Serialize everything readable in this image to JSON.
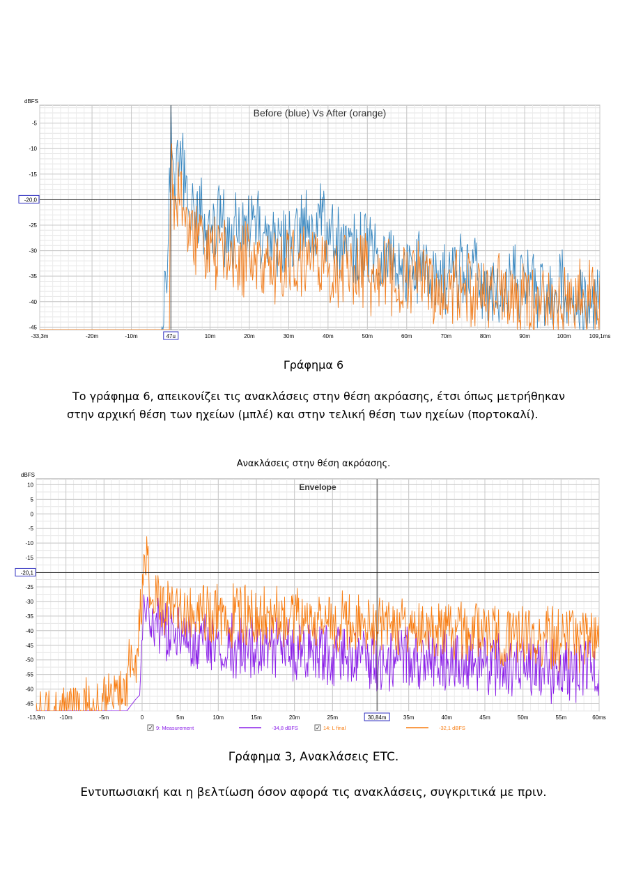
{
  "chart_data": [
    {
      "type": "line",
      "title": "Before (blue) Vs After (orange)",
      "ylabel": "dBFS",
      "xlim": [
        -33.3,
        109.1
      ],
      "ylim": [
        -45.5,
        -1.5
      ],
      "x_unit": "ms",
      "y_ticks": [
        "-5",
        "-10",
        "-15",
        "-20,0",
        "-25",
        "-30",
        "-35",
        "-40",
        "-45"
      ],
      "x_ticks": [
        "-33,3m",
        "-20m",
        "-10m",
        "47u",
        "10m",
        "20m",
        "30m",
        "40m",
        "50m",
        "60m",
        "70m",
        "80m",
        "90m",
        "100m",
        "109,1ms"
      ],
      "cursor": {
        "x_label": "47u",
        "y_label": "-20,0",
        "x": 0.047,
        "y": -20.0
      },
      "grid": true,
      "series": [
        {
          "color": "#3a88c0",
          "x": [
            -33.3,
            -2.5,
            -1.8,
            -1.0,
            -0.3,
            0.0,
            0.5,
            1.0,
            2.0,
            3.0,
            4.0,
            6.0,
            8.0,
            10.0,
            12.0,
            15.0,
            18.0,
            20.0,
            25.0,
            30.0,
            35.0,
            40.0,
            45.0,
            50.0,
            55.0,
            60.0,
            65.0,
            70.0,
            75.0,
            80.0,
            85.0,
            90.0,
            95.0,
            100.0,
            105.0,
            109.1
          ],
          "y": [
            -45.5,
            -45.5,
            -38.0,
            -30.0,
            -12.0,
            -1.5,
            -4.0,
            -10.0,
            -8.0,
            -9.0,
            -12.0,
            -16.0,
            -18.0,
            -22.0,
            -17.0,
            -22.0,
            -20.0,
            -18.0,
            -23.0,
            -22.0,
            -18.0,
            -20.0,
            -25.0,
            -24.0,
            -26.0,
            -29.0,
            -27.0,
            -31.0,
            -28.0,
            -31.0,
            -32.0,
            -30.0,
            -33.0,
            -32.0,
            -35.0,
            -34.0
          ]
        },
        {
          "color": "#f07d1e",
          "x": [
            -33.3,
            -0.3,
            0.0,
            0.5,
            1.0,
            2.0,
            3.0,
            4.0,
            6.0,
            8.0,
            10.0,
            12.0,
            15.0,
            18.0,
            20.0,
            25.0,
            30.0,
            35.0,
            40.0,
            45.0,
            50.0,
            55.0,
            60.0,
            65.0,
            70.0,
            75.0,
            80.0,
            85.0,
            90.0,
            95.0,
            100.0,
            105.0,
            109.1
          ],
          "y": [
            -45.5,
            -45.5,
            -3.0,
            -12.0,
            -15.0,
            -14.0,
            -16.0,
            -18.0,
            -22.0,
            -24.0,
            -25.0,
            -24.0,
            -26.0,
            -27.0,
            -26.0,
            -28.0,
            -27.0,
            -26.0,
            -28.0,
            -27.0,
            -29.0,
            -30.0,
            -30.0,
            -31.0,
            -31.0,
            -32.0,
            -33.0,
            -33.0,
            -34.0,
            -34.0,
            -35.0,
            -34.0,
            -34.0
          ]
        }
      ]
    },
    {
      "type": "line",
      "title": "Envelope",
      "ylabel": "dBFS",
      "xlim": [
        -13.9,
        60.0
      ],
      "ylim": [
        -67.5,
        12.0
      ],
      "x_unit": "ms",
      "y_ticks": [
        "10",
        "5",
        "0",
        "-5",
        "-10",
        "-15",
        "-20,1",
        "-25",
        "-30",
        "-35",
        "-40",
        "-45",
        "-50",
        "-55",
        "-60",
        "-65"
      ],
      "x_ticks": [
        "-13,9m",
        "-10m",
        "-5m",
        "0",
        "5m",
        "10m",
        "15m",
        "20m",
        "25m",
        "30,84m",
        "35m",
        "40m",
        "45m",
        "50m",
        "55m",
        "60ms"
      ],
      "cursor": {
        "x_label": "30,84m",
        "y_label": "-20,1",
        "x": 30.84,
        "y": -20.1
      },
      "grid": true,
      "series": [
        {
          "name": "9: Measurement",
          "readout": "-34,8 dBFS",
          "checked": true,
          "color": "#8a1ee8",
          "x": [
            -13.9,
            -2.0,
            -1.0,
            -0.3,
            0.0,
            0.3,
            1.0,
            2.0,
            3.0,
            4.0,
            6.0,
            8.0,
            10.0,
            12.0,
            14.0,
            16.0,
            20.0,
            25.0,
            30.0,
            35.0,
            40.0,
            45.0,
            50.0,
            55.0,
            60.0
          ],
          "y": [
            -67.5,
            -67.5,
            -64.0,
            -62.0,
            -40.0,
            -22.0,
            -28.0,
            -30.0,
            -32.0,
            -33.0,
            -35.0,
            -36.0,
            -37.0,
            -37.0,
            -38.0,
            -38.0,
            -40.0,
            -40.0,
            -41.0,
            -42.0,
            -43.0,
            -44.0,
            -45.0,
            -46.0,
            -46.0
          ]
        },
        {
          "name": "14: L final",
          "readout": "-32,1 dBFS",
          "checked": true,
          "color": "#f87b0e",
          "x": [
            -13.9,
            -12.0,
            -10.0,
            -8.0,
            -6.0,
            -4.0,
            -3.0,
            -2.0,
            -1.0,
            -0.5,
            0.0,
            0.3,
            1.0,
            2.0,
            3.0,
            4.0,
            6.0,
            8.0,
            10.0,
            12.0,
            14.0,
            16.0,
            20.0,
            25.0,
            30.0,
            35.0,
            40.0,
            45.0,
            50.0,
            55.0,
            60.0
          ],
          "y": [
            -63.0,
            -62.0,
            -61.0,
            -59.0,
            -57.0,
            -54.0,
            -52.0,
            -48.0,
            -42.0,
            -34.0,
            -18.0,
            -5.0,
            -15.0,
            -22.0,
            -24.0,
            -25.0,
            -25.0,
            -26.0,
            -26.0,
            -27.0,
            -26.0,
            -27.0,
            -28.0,
            -29.0,
            -30.0,
            -31.0,
            -32.0,
            -33.0,
            -34.0,
            -35.0,
            -36.0
          ]
        }
      ]
    }
  ],
  "figure1": {
    "caption": "Γράφημα 6"
  },
  "text1": {
    "line1": "Το γράφημα 6, απεικονίζει τις ανακλάσεις στην θέση ακρόασης, έτσι όπως μετρήθηκαν",
    "line2": "στην αρχική θέση των ηχείων (μπλέ) και στην τελική θέση των ηχείων (πορτοκαλί)."
  },
  "figure2": {
    "heading": "Ανακλάσεις στην θέση ακρόασης.",
    "caption": "Γράφημα 3, Ανακλάσεις ETC."
  },
  "text2": {
    "line1": "Εντυπωσιακή και η βελτίωση όσον αφορά τις ανακλάσεις, συγκριτικά με πριν."
  }
}
